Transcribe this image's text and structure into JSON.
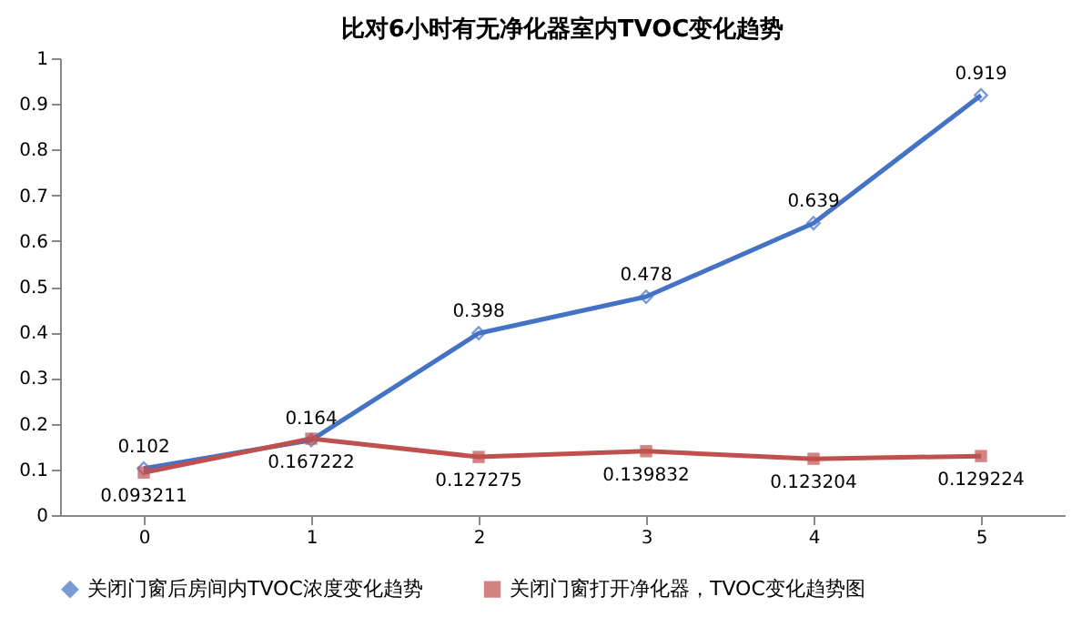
{
  "chart_data": {
    "type": "line",
    "title": "比对6小时有无净化器室内TVOC变化趋势",
    "categories": [
      "0",
      "1",
      "2",
      "3",
      "4",
      "5"
    ],
    "series": [
      {
        "name": "关闭门窗后房间内TVOC浓度变化趋势",
        "color": "#4472c4",
        "marker": "diamond",
        "values": [
          0.102,
          0.164,
          0.398,
          0.478,
          0.639,
          0.919
        ]
      },
      {
        "name": "关闭门窗打开净化器，TVOC变化趋势图",
        "color": "#c0504d",
        "marker": "square",
        "values": [
          0.093211,
          0.167222,
          0.127275,
          0.139832,
          0.123204,
          0.129224
        ]
      }
    ],
    "ylim": [
      0,
      1
    ],
    "yticks": [
      0,
      0.1,
      0.2,
      0.3,
      0.4,
      0.5,
      0.6,
      0.7,
      0.8,
      0.9,
      1
    ],
    "grid": false,
    "legend": "bottom",
    "data_labels": true
  }
}
